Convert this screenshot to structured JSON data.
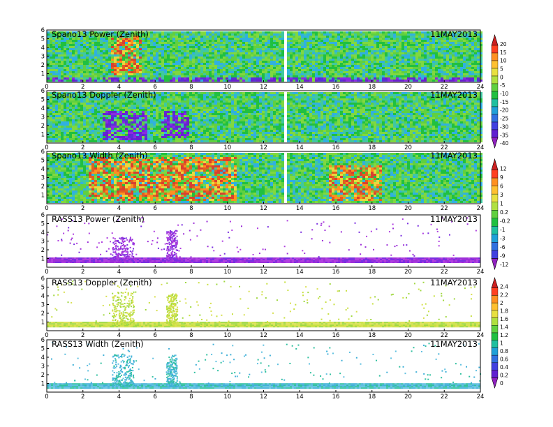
{
  "figure": {
    "x_ticks": [
      "0",
      "2",
      "4",
      "6",
      "8",
      "10",
      "12",
      "14",
      "16",
      "18",
      "20",
      "22",
      "24"
    ],
    "y_ticks": [
      "1",
      "2",
      "3",
      "4",
      "5",
      "6"
    ]
  },
  "chart_data": [
    {
      "type": "heatmap",
      "title": "Spano13 Power (Zenith)",
      "date": "11MAY2013",
      "xlabel": "",
      "ylabel": "",
      "xlim": [
        0,
        24
      ],
      "ylim": [
        0,
        6
      ],
      "colorbar_group": "power_doppler",
      "fill": "dense",
      "regions": [
        {
          "x": [
            3.5,
            5.2
          ],
          "y": [
            1,
            5.5
          ],
          "level": "high"
        },
        {
          "x": [
            0,
            24
          ],
          "y": [
            0.3,
            0.6
          ],
          "level": "very-low"
        }
      ]
    },
    {
      "type": "heatmap",
      "title": "Spano13 Doppler (Zenith)",
      "date": "11MAY2013",
      "xlabel": "",
      "ylabel": "",
      "xlim": [
        0,
        24
      ],
      "ylim": [
        0,
        6
      ],
      "colorbar_group": "power_doppler",
      "fill": "dense",
      "regions": [
        {
          "x": [
            3.0,
            5.5
          ],
          "y": [
            0.5,
            3.8
          ],
          "level": "very-low"
        },
        {
          "x": [
            6.3,
            7.8
          ],
          "y": [
            0.8,
            3.8
          ],
          "level": "very-low"
        }
      ]
    },
    {
      "type": "heatmap",
      "title": "Spano13 Width (Zenith)",
      "date": "11MAY2013",
      "xlabel": "",
      "ylabel": "",
      "xlim": [
        0,
        24
      ],
      "ylim": [
        0,
        6
      ],
      "colorbar_group": "width",
      "fill": "dense",
      "regions": [
        {
          "x": [
            2.3,
            10.5
          ],
          "y": [
            0.5,
            5.5
          ],
          "level": "high"
        },
        {
          "x": [
            15.5,
            18.5
          ],
          "y": [
            0.5,
            4.5
          ],
          "level": "high"
        }
      ]
    },
    {
      "type": "scatter",
      "title": "RASS13 Power (Zenith)",
      "date": "11MAY2013",
      "xlabel": "",
      "ylabel": "",
      "xlim": [
        0,
        24
      ],
      "ylim": [
        0,
        6
      ],
      "colorbar_group": "width",
      "fill": "sparse",
      "band": {
        "y": 0.8,
        "level": "low"
      },
      "clusters": [
        {
          "x": [
            3.6,
            4.8
          ],
          "y": [
            0.8,
            3.5
          ]
        },
        {
          "x": [
            6.6,
            7.2
          ],
          "y": [
            0.8,
            4.3
          ]
        }
      ]
    },
    {
      "type": "scatter",
      "title": "RASS13 Doppler (Zenith)",
      "date": "11MAY2013",
      "xlabel": "",
      "ylabel": "",
      "xlim": [
        0,
        24
      ],
      "ylim": [
        0,
        6
      ],
      "colorbar_group": "rass",
      "fill": "sparse",
      "band": {
        "y": 0.7,
        "level": "mid"
      },
      "clusters": [
        {
          "x": [
            3.6,
            4.8
          ],
          "y": [
            0.8,
            4.5
          ]
        },
        {
          "x": [
            6.6,
            7.2
          ],
          "y": [
            0.8,
            4.3
          ]
        }
      ]
    },
    {
      "type": "scatter",
      "title": "RASS13 Width (Zenith)",
      "date": "11MAY2013",
      "xlabel": "",
      "ylabel": "",
      "xlim": [
        0,
        24
      ],
      "ylim": [
        0,
        6
      ],
      "colorbar_group": "rass",
      "fill": "sparse",
      "band": {
        "y": 0.7,
        "level": "mid-low"
      },
      "clusters": [
        {
          "x": [
            3.6,
            4.8
          ],
          "y": [
            0.8,
            4.5
          ]
        },
        {
          "x": [
            6.6,
            7.2
          ],
          "y": [
            0.8,
            4.3
          ]
        }
      ]
    }
  ],
  "colorbars": [
    {
      "name": "power_doppler",
      "labels": [
        "20",
        "15",
        "10",
        "5",
        "0",
        "-5",
        "-10",
        "-15",
        "-20",
        "-25",
        "-30",
        "-35",
        "-40"
      ],
      "colors": [
        "#cc2020",
        "#ff4020",
        "#ff9020",
        "#ffc030",
        "#e8e040",
        "#b0e040",
        "#60d040",
        "#20c040",
        "#20c0a0",
        "#20a0d8",
        "#3070e0",
        "#4040e0",
        "#6020d0",
        "#9020c0"
      ]
    },
    {
      "name": "width",
      "labels": [
        "12",
        "9",
        "6",
        "3",
        "1",
        "0.2",
        "-0.2",
        "-1",
        "-3",
        "-6",
        "-9",
        "-12"
      ],
      "colors": [
        "#cc2020",
        "#ff4020",
        "#ff9020",
        "#ffc030",
        "#e8e040",
        "#b0e040",
        "#60d040",
        "#20c040",
        "#20c0a0",
        "#20a0d8",
        "#3070e0",
        "#4040e0",
        "#9020c0"
      ]
    },
    {
      "name": "rass",
      "labels": [
        "2.4",
        "2.2",
        "2",
        "1.8",
        "1.6",
        "1.4",
        "1.2",
        "1",
        "0.8",
        "0.6",
        "0.4",
        "0.2",
        "0"
      ],
      "colors": [
        "#cc2020",
        "#ff4020",
        "#ff9020",
        "#ffc030",
        "#e8e040",
        "#b0e040",
        "#60d040",
        "#20c040",
        "#20c0a0",
        "#20a0d8",
        "#3070e0",
        "#4040e0",
        "#6020d0",
        "#9020c0"
      ]
    }
  ]
}
